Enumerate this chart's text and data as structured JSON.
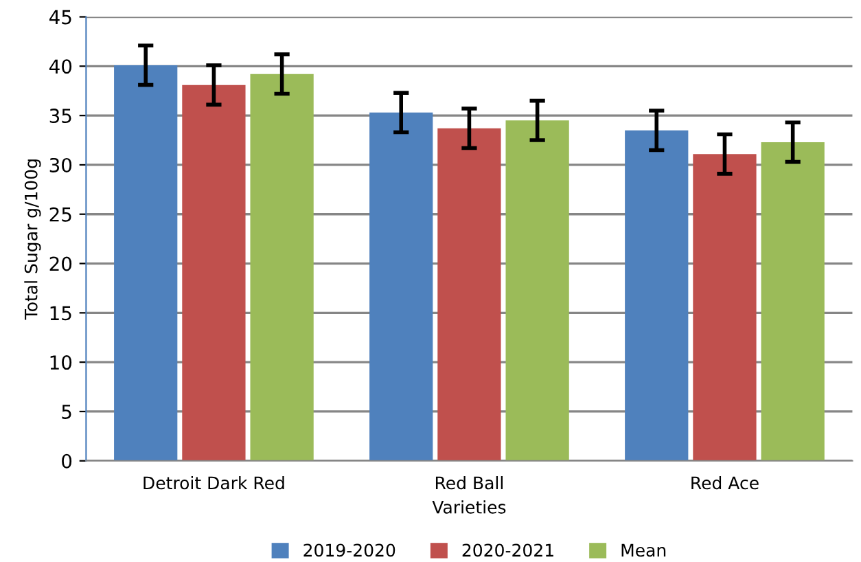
{
  "chart_data": {
    "type": "bar",
    "xlabel": "Varieties",
    "ylabel": "Total Sugar g/100g",
    "categories": [
      "Detroit Dark Red",
      "Red Ball",
      "Red Ace"
    ],
    "series": [
      {
        "name": "2019-2020",
        "color": "#4f81bd",
        "values": [
          40.1,
          35.3,
          33.5
        ],
        "errors": [
          2,
          2,
          2
        ]
      },
      {
        "name": "2020-2021",
        "color": "#c0504d",
        "values": [
          38.1,
          33.7,
          31.1
        ],
        "errors": [
          2,
          2,
          2
        ]
      },
      {
        "name": "Mean",
        "color": "#9bbb59",
        "values": [
          39.2,
          34.5,
          32.3
        ],
        "errors": [
          2,
          2,
          2
        ]
      }
    ],
    "ylim": [
      0,
      45
    ],
    "yticks": [
      0,
      5,
      10,
      15,
      20,
      25,
      30,
      35,
      40,
      45
    ],
    "grid": "y",
    "legend": "bottom"
  }
}
